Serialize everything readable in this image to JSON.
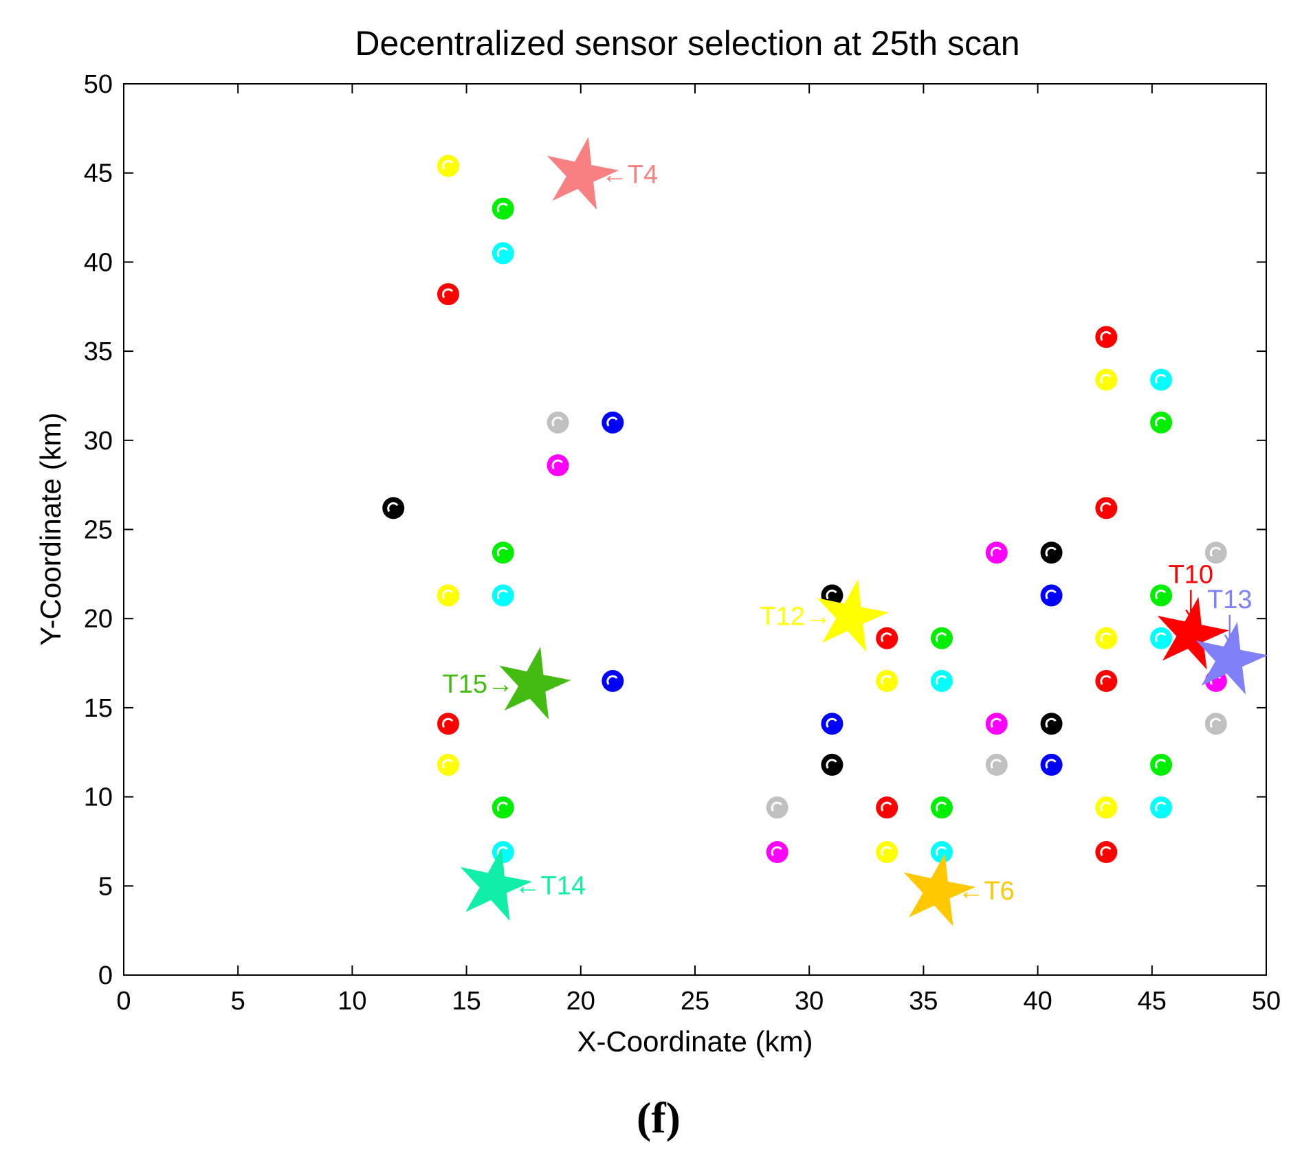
{
  "chart_data": {
    "type": "scatter",
    "title": "Decentralized sensor selection at 25th scan",
    "xlabel": "X-Coordinate (km)",
    "ylabel": "Y-Coordinate (km)",
    "xlim": [
      0,
      50
    ],
    "ylim": [
      0,
      50
    ],
    "xticks": [
      "0",
      "5",
      "10",
      "15",
      "20",
      "25",
      "30",
      "35",
      "40",
      "45",
      "50"
    ],
    "yticks": [
      "0",
      "5",
      "10",
      "15",
      "20",
      "25",
      "30",
      "35",
      "40",
      "45",
      "50"
    ],
    "grid": false,
    "sensors": [
      {
        "x": 14.2,
        "y": 45.4,
        "color": "#ffff00"
      },
      {
        "x": 16.6,
        "y": 43.0,
        "color": "#00ee00"
      },
      {
        "x": 16.6,
        "y": 40.5,
        "color": "#00ffff"
      },
      {
        "x": 14.2,
        "y": 38.2,
        "color": "#ff0000"
      },
      {
        "x": 19.0,
        "y": 31.0,
        "color": "#c0c0c0"
      },
      {
        "x": 21.4,
        "y": 31.0,
        "color": "#0000ff"
      },
      {
        "x": 19.0,
        "y": 28.6,
        "color": "#ff00ff"
      },
      {
        "x": 11.8,
        "y": 26.2,
        "color": "#000000"
      },
      {
        "x": 16.6,
        "y": 23.7,
        "color": "#00ee00"
      },
      {
        "x": 14.2,
        "y": 21.3,
        "color": "#ffff00"
      },
      {
        "x": 16.6,
        "y": 21.3,
        "color": "#00ffff"
      },
      {
        "x": 21.4,
        "y": 16.5,
        "color": "#0000ff"
      },
      {
        "x": 14.2,
        "y": 14.1,
        "color": "#ff0000"
      },
      {
        "x": 14.2,
        "y": 11.8,
        "color": "#ffff00"
      },
      {
        "x": 16.6,
        "y": 9.4,
        "color": "#00ee00"
      },
      {
        "x": 16.6,
        "y": 6.9,
        "color": "#00ffff"
      },
      {
        "x": 28.6,
        "y": 9.4,
        "color": "#c0c0c0"
      },
      {
        "x": 28.6,
        "y": 6.9,
        "color": "#ff00ff"
      },
      {
        "x": 31.0,
        "y": 21.3,
        "color": "#000000"
      },
      {
        "x": 31.0,
        "y": 14.1,
        "color": "#0000ff"
      },
      {
        "x": 31.0,
        "y": 11.8,
        "color": "#000000"
      },
      {
        "x": 33.4,
        "y": 18.9,
        "color": "#ff0000"
      },
      {
        "x": 33.4,
        "y": 16.5,
        "color": "#ffff00"
      },
      {
        "x": 33.4,
        "y": 9.4,
        "color": "#ff0000"
      },
      {
        "x": 33.4,
        "y": 6.9,
        "color": "#ffff00"
      },
      {
        "x": 35.8,
        "y": 18.9,
        "color": "#00ee00"
      },
      {
        "x": 35.8,
        "y": 16.5,
        "color": "#00ffff"
      },
      {
        "x": 35.8,
        "y": 9.4,
        "color": "#00ee00"
      },
      {
        "x": 35.8,
        "y": 6.9,
        "color": "#00ffff"
      },
      {
        "x": 38.2,
        "y": 23.7,
        "color": "#ff00ff"
      },
      {
        "x": 38.2,
        "y": 14.1,
        "color": "#ff00ff"
      },
      {
        "x": 38.2,
        "y": 11.8,
        "color": "#c0c0c0"
      },
      {
        "x": 40.6,
        "y": 23.7,
        "color": "#000000"
      },
      {
        "x": 40.6,
        "y": 21.3,
        "color": "#0000ff"
      },
      {
        "x": 40.6,
        "y": 14.1,
        "color": "#000000"
      },
      {
        "x": 40.6,
        "y": 11.8,
        "color": "#0000ff"
      },
      {
        "x": 43.0,
        "y": 35.8,
        "color": "#ff0000"
      },
      {
        "x": 43.0,
        "y": 33.4,
        "color": "#ffff00"
      },
      {
        "x": 43.0,
        "y": 26.2,
        "color": "#ff0000"
      },
      {
        "x": 43.0,
        "y": 18.9,
        "color": "#ffff00"
      },
      {
        "x": 43.0,
        "y": 16.5,
        "color": "#ff0000"
      },
      {
        "x": 43.0,
        "y": 9.4,
        "color": "#ffff00"
      },
      {
        "x": 43.0,
        "y": 6.9,
        "color": "#ff0000"
      },
      {
        "x": 45.4,
        "y": 33.4,
        "color": "#00ffff"
      },
      {
        "x": 45.4,
        "y": 31.0,
        "color": "#00ee00"
      },
      {
        "x": 45.4,
        "y": 21.3,
        "color": "#00ee00"
      },
      {
        "x": 45.4,
        "y": 18.9,
        "color": "#00ffff"
      },
      {
        "x": 45.4,
        "y": 11.8,
        "color": "#00ee00"
      },
      {
        "x": 45.4,
        "y": 9.4,
        "color": "#00ffff"
      },
      {
        "x": 47.8,
        "y": 23.7,
        "color": "#c0c0c0"
      },
      {
        "x": 47.8,
        "y": 16.5,
        "color": "#ff00ff"
      },
      {
        "x": 47.8,
        "y": 14.1,
        "color": "#c0c0c0"
      }
    ],
    "targets": [
      {
        "name": "T4",
        "x": 20.0,
        "y": 44.9,
        "color": "#f88080",
        "arrow": "←"
      },
      {
        "name": "T15",
        "x": 17.9,
        "y": 16.3,
        "color": "#44bb11",
        "arrow": "→"
      },
      {
        "name": "T14",
        "x": 16.2,
        "y": 5.0,
        "color": "#11eeaa",
        "arrow": "←"
      },
      {
        "name": "T12",
        "x": 31.8,
        "y": 20.1,
        "color": "#ffff00",
        "arrow": "→"
      },
      {
        "name": "T6",
        "x": 35.6,
        "y": 4.7,
        "color": "#ffc800",
        "arrow": "←"
      },
      {
        "name": "T10",
        "x": 46.7,
        "y": 19.1,
        "color": "#ff0000",
        "arrow": "↓"
      },
      {
        "name": "T13",
        "x": 48.4,
        "y": 17.7,
        "color": "#8080f8",
        "arrow": "↓"
      }
    ]
  },
  "caption": "(f)"
}
